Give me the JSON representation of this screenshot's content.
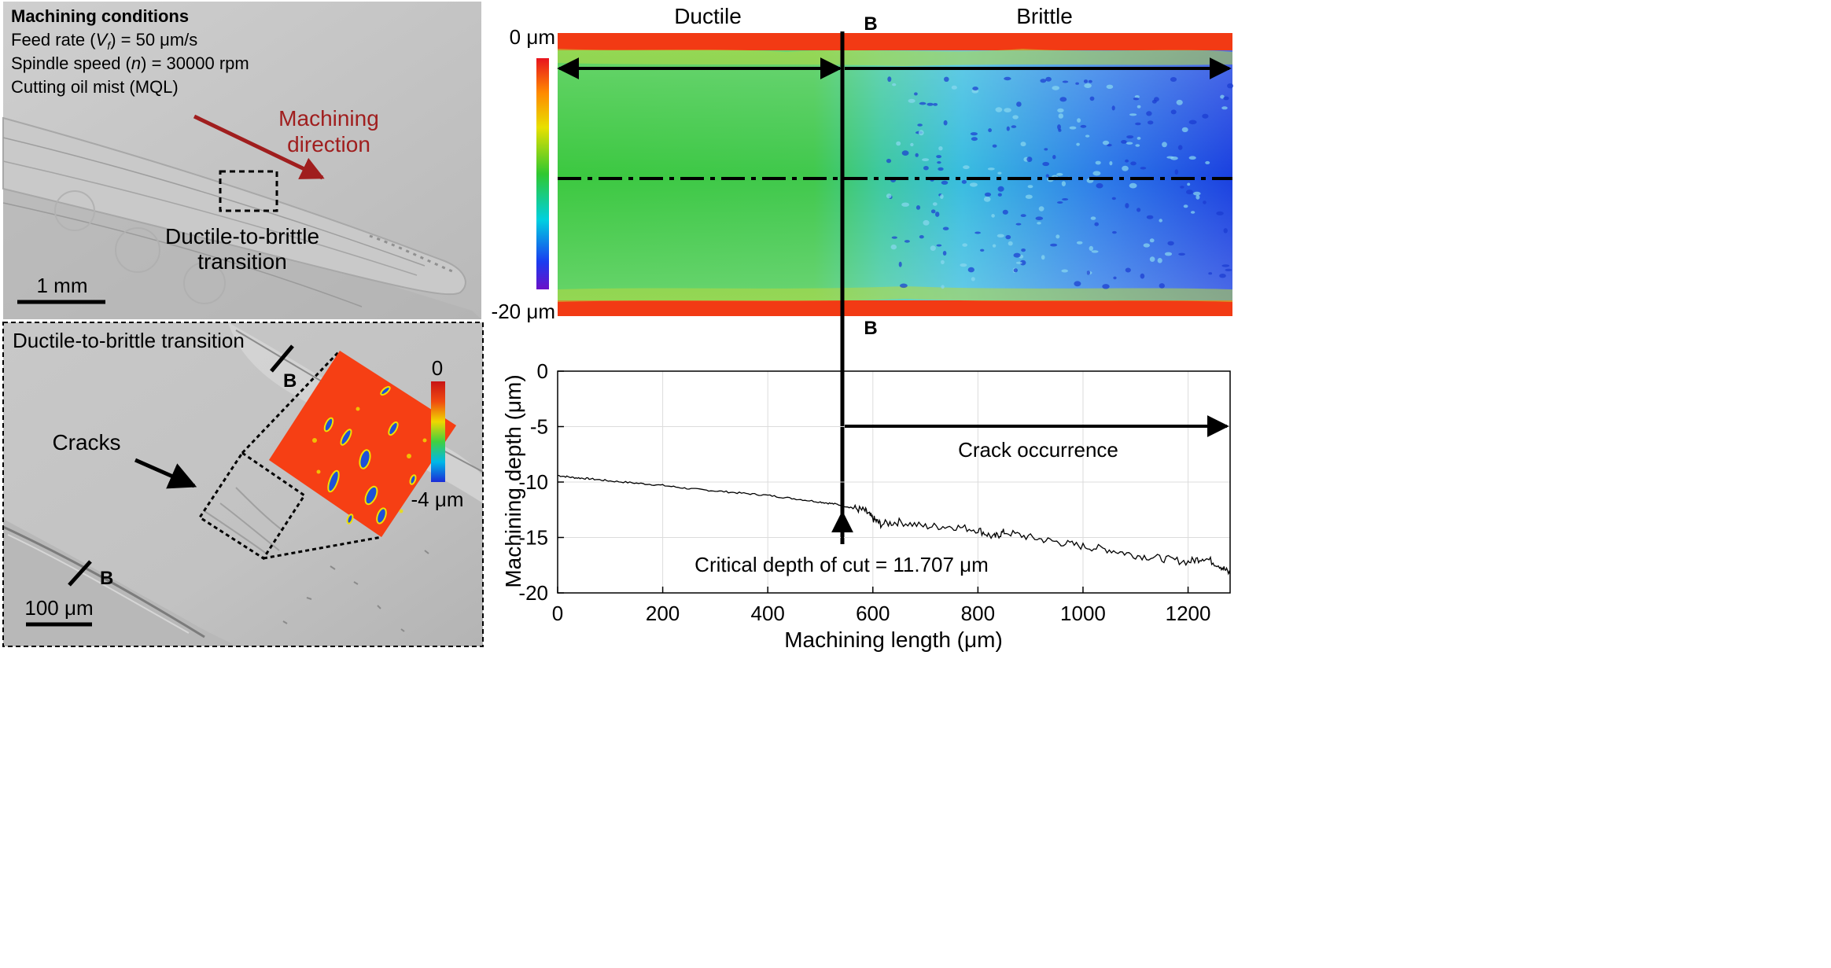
{
  "sem_top": {
    "conditions_title": "Machining conditions",
    "feed_rate_prefix": "Feed rate (",
    "feed_rate_var": "V",
    "feed_rate_sub": "f",
    "feed_rate_suffix": ") = 50 μm/s",
    "spindle_prefix": "Spindle speed (",
    "spindle_var": "n",
    "spindle_suffix": ") = 30000 rpm",
    "oil_mist": "Cutting oil mist (MQL)",
    "direction_line1": "Machining",
    "direction_line2": "direction",
    "transition_line1": "Ductile-to-brittle",
    "transition_line2": "transition",
    "scale_label": "1 mm"
  },
  "sem_bottom": {
    "title": "Ductile-to-brittle transition",
    "cracks_label": "Cracks",
    "section_marker_top": "B",
    "section_marker_bottom": "B",
    "colorbar_max": "0",
    "colorbar_min": "-4 μm",
    "scale_label": "100 μm"
  },
  "height_map": {
    "region_left": "Ductile",
    "region_right": "Brittle",
    "section_marker_top": "B",
    "section_marker_bottom": "B",
    "depth_top_label": "0 μm",
    "depth_bottom_label": "-20 μm"
  },
  "chart_data": {
    "type": "line",
    "xlabel": "Machining length (μm)",
    "ylabel": "Machining depth (μm)",
    "xlim": [
      0,
      1280
    ],
    "ylim": [
      -20,
      0
    ],
    "xticks": [
      0,
      200,
      400,
      600,
      800,
      1000,
      1200
    ],
    "yticks": [
      0,
      -5,
      -10,
      -15,
      -20
    ],
    "grid": true,
    "series": [
      {
        "name": "Machining depth profile",
        "x": [
          0,
          30,
          60,
          100,
          150,
          200,
          250,
          300,
          350,
          400,
          450,
          500,
          530,
          560,
          585,
          600,
          615,
          650,
          700,
          750,
          800,
          830,
          850,
          900,
          950,
          1000,
          1050,
          1100,
          1150,
          1200,
          1230,
          1260,
          1280
        ],
        "y": [
          -9.4,
          -9.6,
          -9.7,
          -9.9,
          -10.1,
          -10.3,
          -10.6,
          -10.8,
          -11.0,
          -11.2,
          -11.5,
          -11.8,
          -12.0,
          -12.3,
          -12.6,
          -13.3,
          -13.8,
          -13.6,
          -14.0,
          -14.0,
          -14.3,
          -15.0,
          -14.5,
          -15.0,
          -15.4,
          -15.8,
          -16.1,
          -16.6,
          -16.9,
          -17.2,
          -16.8,
          -17.5,
          -18.3
        ]
      }
    ],
    "annotations": {
      "critical_depth_label": "Critical depth of cut = 11.707 μm",
      "critical_length": 540,
      "crack_label": "Crack occurrence",
      "section_marker": "B"
    }
  },
  "colors": {
    "direction_arrow": "#a01e1e",
    "heat_red": "#f03a14",
    "ductile_green": "#3ec83a",
    "brittle_cyan": "#3ab4e8",
    "brittle_blue": "#1c3ce0"
  }
}
